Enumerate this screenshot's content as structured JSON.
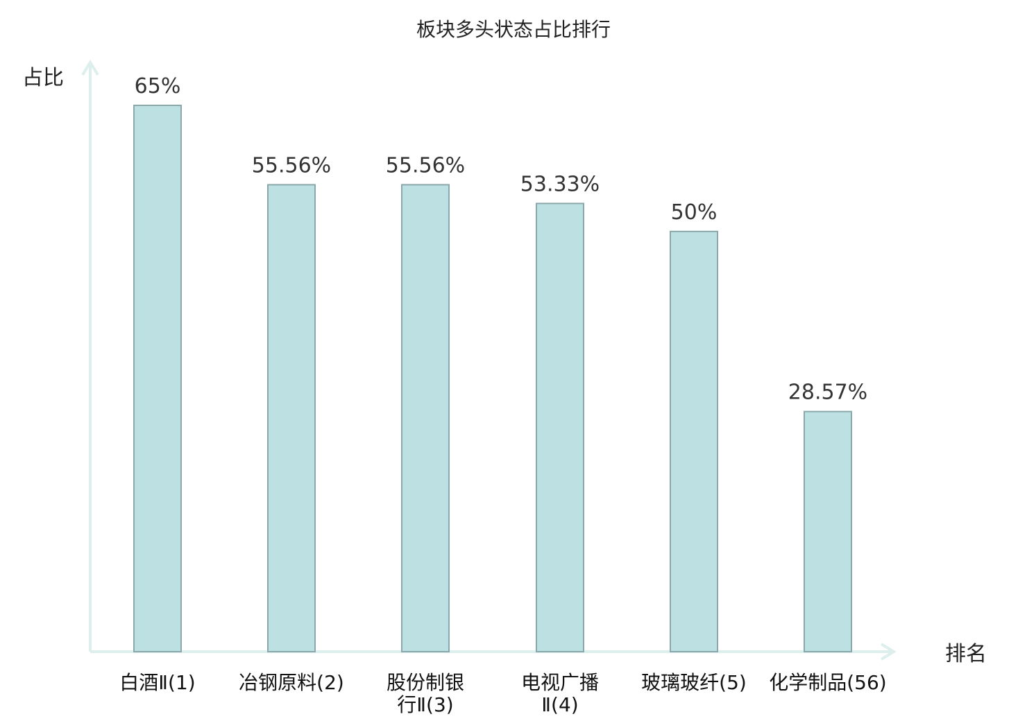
{
  "chart_data": {
    "type": "bar",
    "title": "板块多头状态占比排行",
    "xlabel": "排名",
    "ylabel": "占比",
    "ylim": [
      0,
      70
    ],
    "grid": false,
    "categories": [
      {
        "name": "白酒Ⅱ",
        "rank": "(1)",
        "lines": [
          "白酒Ⅱ(1)"
        ],
        "highlight": false
      },
      {
        "name": "冶钢原料",
        "rank": "(2)",
        "lines": [
          "冶钢原料(2)"
        ],
        "highlight": false
      },
      {
        "name": "股份制银行Ⅱ",
        "rank": "(3)",
        "lines": [
          "股份制银",
          "行Ⅱ(3)"
        ],
        "highlight": false
      },
      {
        "name": "电视广播Ⅱ",
        "rank": "(4)",
        "lines": [
          "电视广播",
          "Ⅱ(4)"
        ],
        "highlight": false
      },
      {
        "name": "玻璃玻纤",
        "rank": "(5)",
        "lines": [
          "玻璃玻纤(5)"
        ],
        "highlight": false
      },
      {
        "name": "化学制品",
        "rank": "(56)",
        "lines": [
          "化学制品(56)"
        ],
        "highlight": true
      }
    ],
    "values": [
      65,
      55.56,
      55.56,
      53.33,
      50,
      28.57
    ],
    "labels": [
      "65%",
      "55.56%",
      "55.56%",
      "53.33%",
      "50%",
      "28.57%"
    ],
    "colors": {
      "bar_fill": "#bde0e3",
      "bar_stroke": "#8aa8ab",
      "axis": "#dcefec",
      "highlight_text": "#dd1111"
    }
  }
}
